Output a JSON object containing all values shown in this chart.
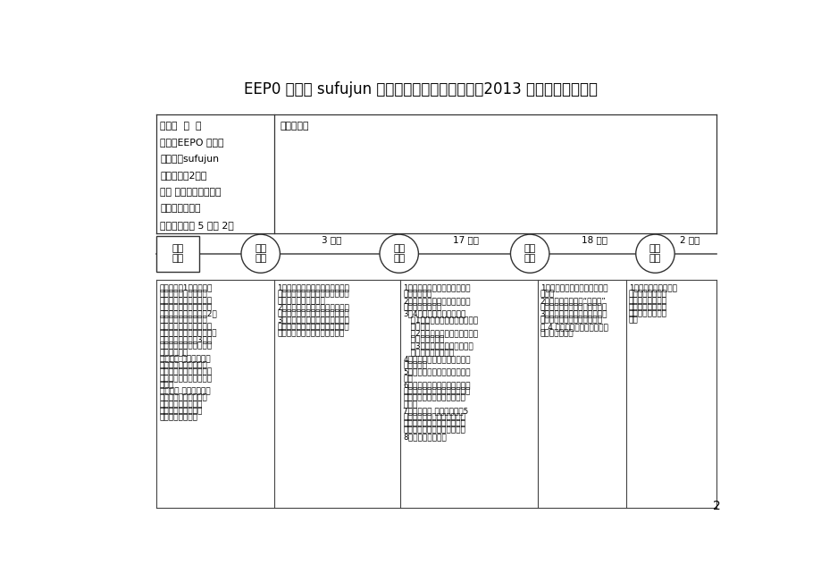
{
  "title": "EEP0 训练营 sufujun 教师图文结构式备课教案（2013 年春季学期使用）",
  "page_num": "2",
  "info_lines": [
    "日期：  月  日",
    "学校：EEPO 训练营",
    "授课人：sufujun",
    "班级：二（2）班",
    "学科 二年级第四册数学",
    "标题：解决问题",
    "内容：课本第 5 页例 2。"
  ],
  "reflection_label": "教学反思：",
  "left_box_label": "教学\n要素",
  "timeline_labels": [
    "激趣\n导入",
    "合作\n探究",
    "练习\n巳固",
    "课堂\n总结"
  ],
  "timeline_times": [
    "3 分钟",
    "17 分钟",
    "18 分钟",
    "2 分钟"
  ],
  "col0_lines": [
    "教学目标：1、使学生能",
    "从具体的生活情境中发",
    "现问题，掌握解决问题的",
    "步骤和方法，知道可以用",
    "不同的方法解决问题。2、",
    "培养学生认真观察等良",
    "好的学习习惯，初步培养",
    "学生发现问题，提出问题、",
    "解决问题的能力。3、通",
    "过学习，使学生认识到小",
    "括号的作用。",
    "教学重点 使学生知道可",
    "以用不同的方法解决问",
    "题，体会解决问题策略的",
    "多样性，提高解决问题的",
    "能力。",
    "教学难点 从不同的角度",
    "发现并提出问题以及不",
    "同的方法解决问题。",
    "课型方式：要素组合",
    "课时形态：标准课"
  ],
  "col1_lines": [
    "1、教师谈话，引导学生思考：今",
    "天，我们去面包房看看，看看那里",
    "有什么好看的，想吗？",
    "2、出示游乐园面包房图，问：我",
    "们看看图中的小朋友们在做什么？",
    "3、让学生观察画面，提出问题。",
    "教师适当启发引导：还剩多少个面",
    "包？学生自由发言，提出问题。"
  ],
  "col2_lines": [
    "1、教师有选择地板书：：还剩",
    "多少个面包？",
    "2、引导观察并了解信息：从图",
    "中你知道了什么？",
    "3、4人小组交流讨论学习。",
    "   （1）应该怎样计算：还剩多少",
    "   个面包？",
    "   （2）独立思考后，把自己的想",
    "   法在组内交流。",
    "   （3）选派组内代表在班中交",
    "   流解决问题的方法。",
    "4、把学生解决问题的方法记录",
    "在黑板上。",
    "5、引导学生比较两种方法的异",
    "同。",
    "6、你能把两个小算式写成一个",
    "算式吗？学生尝试列综合算式。",
    "特别强调计算时先算小括号里",
    "面的。",
    "7、随堂检测 完成练习一第5",
    "题。先让学生看图，明确要解",
    "决的问题，并找到解决问题的",
    "办法。指名汇报与交流订正。",
    "8、师生互动小结。"
  ],
  "col3_lines": [
    "1、课堂互动小游戏：我会编应",
    "用题。",
    "2、随堂检测：出示“做一做”",
    "的练习。同桌交流，师生交互。",
    "3、做练习一的有关习题，让学",
    "生在自己的书上做一做，然后",
    "在 4 人小组内交流，指名汇报",
    "师生交互订正。"
  ],
  "col4_lines": [
    "1、通过今天这节课，",
    "我们又学到了什么",
    "本领？你能把我们",
    "今天学会的知识解",
    "决我们身边的问题",
    "吗？"
  ],
  "bg_color": "#ffffff",
  "text_color": "#000000",
  "line_color": "#555555"
}
